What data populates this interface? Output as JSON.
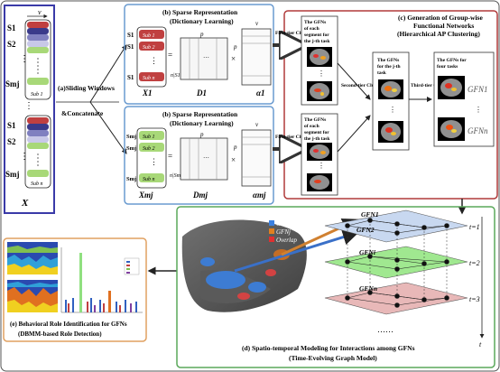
{
  "panel_a": {
    "matrix_label": "X",
    "v_label": "v",
    "top_rows": [
      "S1",
      "S2",
      "Smj"
    ],
    "bottom_rows": [
      "S1",
      "S2",
      "Smj"
    ],
    "sub1": "Sub 1",
    "subn": "Sub n",
    "dots": "⋮"
  },
  "step_a": {
    "line1": "(a)Sliding Windows",
    "line2": "&Concatenate"
  },
  "panel_b": {
    "title1": "(b) Sparse Representation",
    "title2": "(Dictionary Learning)",
    "top": {
      "x": "X1",
      "d": "D1",
      "alpha": "α1",
      "rows": [
        "S1",
        "S1",
        "S1"
      ],
      "subs": [
        "Sub 1",
        "Sub 2",
        "Sub n"
      ]
    },
    "bottom": {
      "x": "Xmj",
      "d": "Dmj",
      "alpha": "αmj",
      "rows": [
        "Smj",
        "Smj",
        "Smj"
      ],
      "subs": [
        "Sub 1",
        "Sub 2",
        "Sub n"
      ]
    },
    "p": "p",
    "v": "v",
    "times": "×",
    "eq": "=",
    "n_s1": "n|S1|",
    "n_smj": "n|Smj|"
  },
  "panel_c": {
    "title1": "(c) Generation of Group-wise",
    "title2": "Functional Networks",
    "title3": "(Hierarchical AP Clustering)",
    "first_tier": "First-tier Clustering",
    "second_tier": "Second-tier Clustering",
    "third_tier": "Third-tier Clustering",
    "col1_top": [
      "The GFNs",
      "of each",
      "segment for",
      "the j-th task"
    ],
    "col1_bottom": [
      "The GFNs",
      "of each",
      "segment for",
      "the j-th task"
    ],
    "col2": [
      "The GFNs",
      "for the j-th",
      "task"
    ],
    "col3": [
      "The GFNs for",
      "four tasks"
    ],
    "gfn1": "GFN1",
    "gfnn": "GFNn"
  },
  "panel_d": {
    "legend": [
      "GFNi",
      "GFNj",
      "Overlap"
    ],
    "gfn_labels": [
      "GFN1",
      "GFN2",
      "GFNi",
      "GFNn"
    ],
    "times": [
      "t=1",
      "t=2",
      "t=3"
    ],
    "t_axis": "t",
    "ellipsis": "……",
    "caption1": "(d) Spatio-temporal Modeling for Interactions among GFNs",
    "caption2": "(Time-Evolving Graph Model)"
  },
  "panel_e": {
    "caption1": "(e) Behavioral Role Identification for GFNs",
    "caption2": "(DBMM-based Role Detection)"
  },
  "colors": {
    "panel_a_border": "#3a3aa8",
    "panel_b_border": "#6a9bd0",
    "panel_c_border": "#b03a3a",
    "panel_d_border": "#5aa85a",
    "panel_e_border": "#e0a060",
    "sub1": "#c04040",
    "sub_mid": "#4a4aa0",
    "subn": "#a8d878",
    "layer1": "#c8d8f0",
    "layer2": "#a0e890",
    "layer3": "#e8b8b8"
  }
}
